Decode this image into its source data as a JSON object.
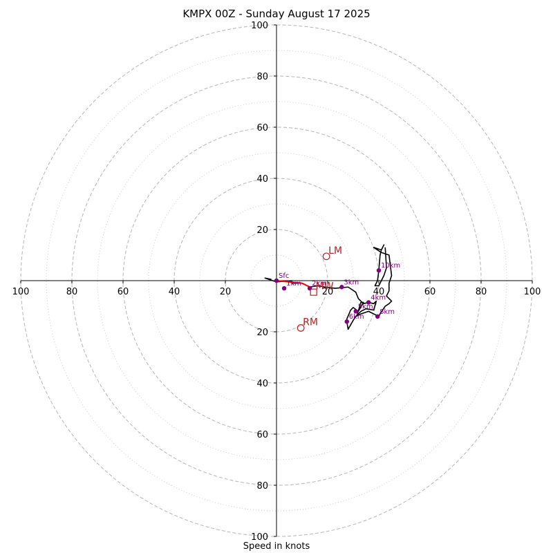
{
  "chart_data": {
    "type": "hodograph",
    "title": "KMPX 00Z - Sunday August 17 2025",
    "xlabel": "Speed in knots",
    "axis_max": 100,
    "ring_major": [
      20,
      40,
      60,
      80,
      100
    ],
    "ring_minor": [
      10,
      30,
      50,
      70,
      90
    ],
    "tick_labels": [
      "20",
      "40",
      "60",
      "80",
      "100"
    ],
    "grid": "on",
    "colors": {
      "hodograph_line": "#000000",
      "height_markers": "#800080",
      "storm_motion": "#b22222",
      "low_level_segment": "#ff0000",
      "grid": "#bbbbbb"
    },
    "hodograph_trace": [
      [
        -2,
        0.5
      ],
      [
        -4.5,
        1
      ],
      [
        0,
        -0.5
      ],
      [
        6,
        0
      ],
      [
        6,
        -1
      ],
      [
        10,
        -1
      ],
      [
        13,
        -2.5
      ],
      [
        16,
        -2
      ],
      [
        19,
        -2.5
      ],
      [
        23,
        -3
      ],
      [
        28,
        -2.5
      ],
      [
        31,
        -4.5
      ],
      [
        32,
        -7
      ],
      [
        34,
        -9
      ],
      [
        36,
        -8.5
      ],
      [
        38,
        -9
      ],
      [
        39,
        -8
      ],
      [
        38,
        -11.5
      ],
      [
        35,
        -11
      ],
      [
        33,
        -12
      ],
      [
        31.5,
        -13.5
      ],
      [
        33,
        -8.5
      ],
      [
        34,
        -8.5
      ],
      [
        32,
        -12
      ],
      [
        30,
        -10.5
      ],
      [
        29,
        -11.5
      ],
      [
        27.5,
        -15
      ],
      [
        27.5,
        -16
      ],
      [
        28,
        -19
      ],
      [
        30,
        -15.5
      ],
      [
        31,
        -14
      ],
      [
        33,
        -13
      ],
      [
        36,
        -12
      ],
      [
        40,
        -14
      ],
      [
        40.5,
        -13
      ],
      [
        42.5,
        -10
      ],
      [
        44,
        -9
      ],
      [
        45,
        -8
      ],
      [
        44,
        -7
      ],
      [
        43,
        -6
      ],
      [
        44,
        -4
      ],
      [
        44,
        -1
      ],
      [
        45,
        2
      ],
      [
        44,
        10
      ],
      [
        41,
        11
      ],
      [
        38,
        13
      ],
      [
        41,
        12
      ],
      [
        42,
        14
      ],
      [
        41,
        12
      ],
      [
        40.5,
        10
      ],
      [
        40,
        4
      ],
      [
        39.5,
        0
      ],
      [
        38.5,
        -2
      ],
      [
        40,
        -2
      ],
      [
        41,
        0
      ],
      [
        42,
        2
      ],
      [
        43,
        5
      ],
      [
        42.5,
        13
      ]
    ],
    "low_level_segment": [
      [
        0,
        0
      ],
      [
        10,
        -1
      ],
      [
        13,
        -2.5
      ]
    ],
    "height_markers": [
      {
        "label": "Sfc",
        "u": 0,
        "v": 0
      },
      {
        "label": "1km",
        "u": 3,
        "v": -3
      },
      {
        "label": "2km",
        "u": 13,
        "v": -3
      },
      {
        "label": "3km",
        "u": 25.5,
        "v": -2.5
      },
      {
        "label": "4km",
        "u": 36,
        "v": -8.5
      },
      {
        "label": "5km",
        "u": 31,
        "v": -12
      },
      {
        "label": "6km",
        "u": 27.5,
        "v": -16
      },
      {
        "label": "8km",
        "u": 39.5,
        "v": -14
      },
      {
        "label": "10km",
        "u": 40,
        "v": 4
      }
    ],
    "storm_motion": [
      {
        "label": "LM",
        "u": 19.5,
        "v": 9.5,
        "marker": "circle"
      },
      {
        "label": "MW",
        "u": 14.5,
        "v": -4.5,
        "marker": "square"
      },
      {
        "label": "RM",
        "u": 9.5,
        "v": -18.5,
        "marker": "circle"
      }
    ]
  }
}
